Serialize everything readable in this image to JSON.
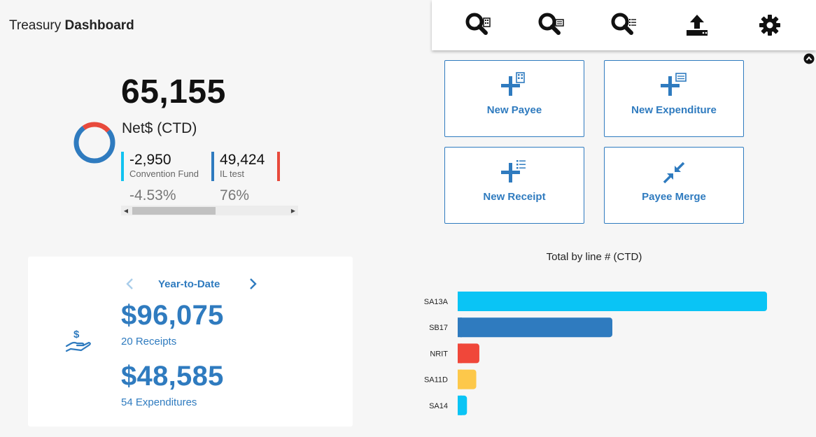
{
  "header": {
    "title_part1": "Treasury ",
    "title_part2": "Dashboard"
  },
  "toolbar": {
    "icons": [
      "search-payee-icon",
      "search-expenditure-icon",
      "search-receipt-icon",
      "upload-icon",
      "gear-icon"
    ]
  },
  "summary": {
    "net_amount": "65,155",
    "net_label": "Net$ (CTD)",
    "funds": [
      {
        "amount": "-2,950",
        "name": "Convention Fund",
        "percent": "-4.53%",
        "color": "#12c3f0"
      },
      {
        "amount": "49,424",
        "name": "IL test",
        "percent": "76%",
        "color": "#2f7bbf"
      },
      {
        "amount": "",
        "name": "",
        "percent": "",
        "color": "#e84a3c"
      }
    ],
    "donut": {
      "segments": [
        {
          "fraction": 0.76,
          "color": "#2f7bbf"
        },
        {
          "fraction": 0.24,
          "color": "#e84a3c"
        }
      ]
    }
  },
  "actions": {
    "new_payee": "New Payee",
    "new_expenditure": "New Expenditure",
    "new_receipt": "New Receipt",
    "payee_merge": "Payee Merge"
  },
  "ytd": {
    "period": "Year-to-Date",
    "receipts_amount": "$96,075",
    "receipts_count": "20 Receipts",
    "expenditures_amount": "$48,585",
    "expenditures_count": "54 Expenditures"
  },
  "chart_data": {
    "type": "bar",
    "orientation": "horizontal",
    "title": "Total by line # (CTD)",
    "categories": [
      "SA13A",
      "SB17",
      "NRIT",
      "SA11D",
      "SA14"
    ],
    "values": [
      100,
      50,
      7,
      6,
      3
    ],
    "colors": [
      "#0ac4f5",
      "#2f7bbf",
      "#f0473a",
      "#fdc84a",
      "#0ac4f5"
    ],
    "xlim": [
      0,
      100
    ]
  }
}
